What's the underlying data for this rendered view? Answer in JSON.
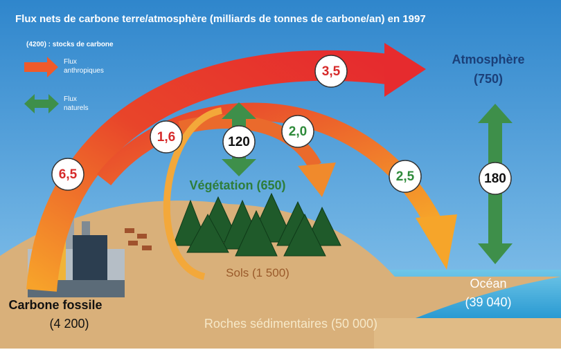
{
  "header": {
    "title": "Flux nets de carbone terre/atmosphère (milliards de tonnes de carbone/an) en 1997"
  },
  "legend": {
    "stocks": "(4200) : stocks de carbone",
    "anthropic": [
      "Flux",
      "anthropiques"
    ],
    "natural": [
      "Flux",
      "naturels"
    ]
  },
  "reservoirs": {
    "atmosphere": [
      "Atmosphère",
      "(750)"
    ],
    "vegetation": "Végétation (650)",
    "soils": "Sols (1 500)",
    "ocean": [
      "Océan",
      "(39 040)"
    ],
    "fossil": [
      "Carbone fossile",
      "(4 200)"
    ],
    "rocks": "Roches sédimentaires (50 000)"
  },
  "fluxes": {
    "fossil_emissions": "6,5",
    "land_use": "1,6",
    "vegetation_exchange": "120",
    "to_land": "2,0",
    "to_atmosphere": "3,5",
    "to_ocean": "2,5",
    "ocean_exchange": "180"
  }
}
